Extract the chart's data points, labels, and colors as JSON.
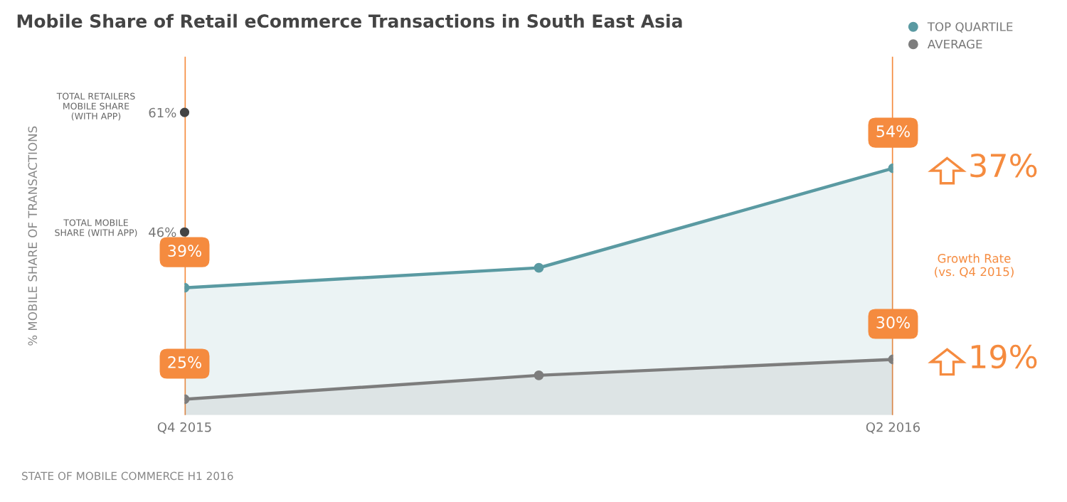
{
  "chart_data": {
    "type": "area",
    "title": "Mobile Share of Retail eCommerce Transactions in South East Asia",
    "ylabel": "% MOBILE SHARE OF TRANSACTIONS",
    "categories": [
      "Q4 2015",
      null,
      "Q2 2016"
    ],
    "series": [
      {
        "name": "TOP QUARTILE",
        "color": "#5a9aa2",
        "values": [
          39,
          41.5,
          54
        ],
        "value_labels": [
          "39%",
          null,
          "54%"
        ]
      },
      {
        "name": "AVERAGE",
        "color": "#7d7d7d",
        "values": [
          25,
          28,
          30
        ],
        "value_labels": [
          "25%",
          null,
          "30%"
        ]
      },
      {
        "type": "scatter",
        "color": "#444444",
        "x": [
          "Q4 2015",
          "Q4 2015"
        ],
        "values": [
          61,
          46
        ]
      }
    ],
    "ylim": [
      23,
      68
    ],
    "yticks": [
      {
        "value": 46,
        "label": "46%"
      },
      {
        "value": 61,
        "label": "61%"
      }
    ],
    "annotations": [
      "TOTAL RETAILERS\nMOBILE SHARE\n(WITH APP)",
      "TOTAL MOBILE\nSHARE (WITH APP)",
      {
        "text": "37%",
        "x": "Q2 2016",
        "y": 54
      },
      "Growth Rate\n(vs. Q4 2015)",
      {
        "text": "19%",
        "x": "Q2 2016",
        "y": 30
      },
      "STATE OF MOBILE COMMERCE H1 2016"
    ],
    "marker": "circle",
    "legend": "top right",
    "grid": "x"
  }
}
